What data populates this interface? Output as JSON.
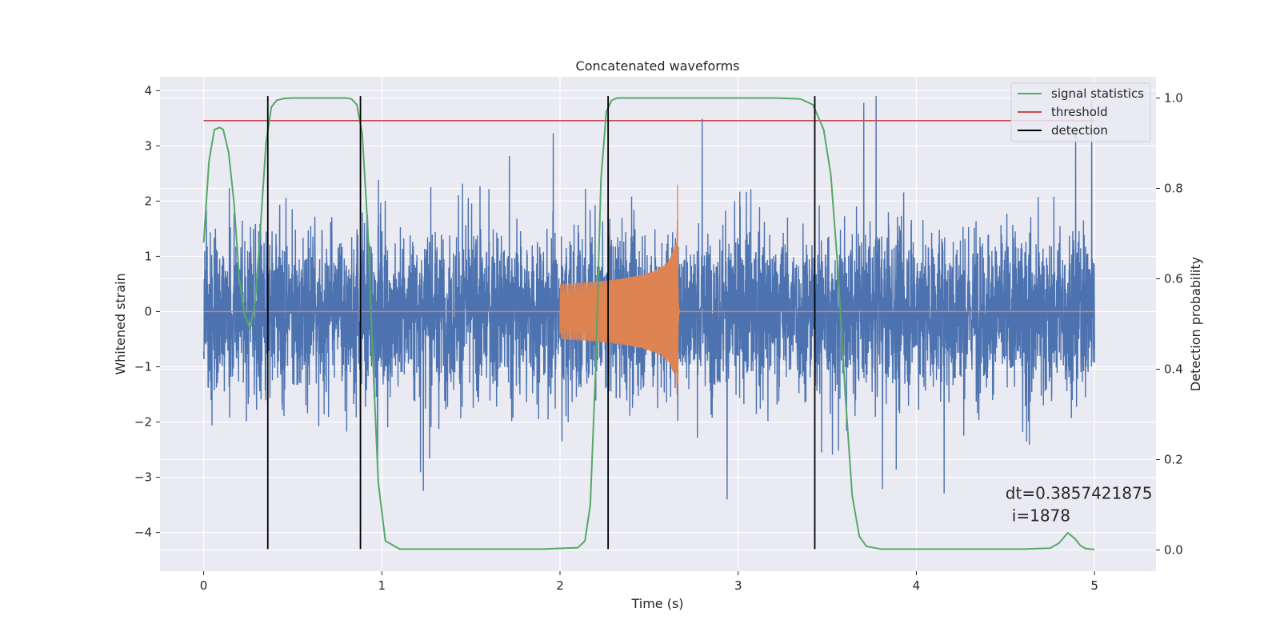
{
  "chart_data": {
    "type": "line",
    "title": "Concatenated waveforms",
    "xlabel": "Time (s)",
    "ylabel_left": "Whitened strain",
    "ylabel_right": "Detection probability",
    "xlim": [
      -0.245,
      5.345
    ],
    "ylim_left": [
      -4.7,
      4.25
    ],
    "ylim_right": [
      -0.047,
      1.047
    ],
    "x_ticks": [
      0,
      1,
      2,
      3,
      4,
      5
    ],
    "x_tick_labels": [
      "0",
      "1",
      "2",
      "3",
      "4",
      "5"
    ],
    "y_left_ticks": [
      -4,
      -3,
      -2,
      -1,
      0,
      1,
      2,
      3,
      4
    ],
    "y_left_tick_labels": [
      "−4",
      "−3",
      "−2",
      "−1",
      "0",
      "1",
      "2",
      "3",
      "4"
    ],
    "y_right_ticks": [
      0.0,
      0.2,
      0.4,
      0.6,
      0.8,
      1.0
    ],
    "y_right_tick_labels": [
      "0.0",
      "0.2",
      "0.4",
      "0.6",
      "0.8",
      "1.0"
    ],
    "grid": true,
    "legend_position": "top-right",
    "legend": [
      {
        "label": "signal statistics",
        "color": "#55a868"
      },
      {
        "label": "threshold",
        "color": "#c44e52"
      },
      {
        "label": "detection",
        "color": "#000000"
      }
    ],
    "series": [
      {
        "name": "whitened-strain",
        "axis": "left",
        "color": "#4c72b0",
        "kind": "noise",
        "x_range": [
          0,
          5
        ],
        "amplitude_typical": 1.5,
        "amplitude_peak": 3.9
      },
      {
        "name": "injected-waveform",
        "axis": "left",
        "color": "#dd8452",
        "kind": "chirp",
        "onset": 2.0,
        "merger": 2.66,
        "start_amplitude": 0.5,
        "peak_amplitude": 2.3,
        "zero_line_x_range": [
          0,
          5
        ]
      },
      {
        "name": "signal statistics",
        "axis": "right",
        "color": "#55a868",
        "x": [
          0.0,
          0.03,
          0.06,
          0.09,
          0.11,
          0.14,
          0.17,
          0.2,
          0.23,
          0.26,
          0.29,
          0.32,
          0.35,
          0.38,
          0.41,
          0.45,
          0.5,
          0.6,
          0.7,
          0.8,
          0.83,
          0.86,
          0.89,
          0.92,
          0.95,
          0.98,
          1.02,
          1.1,
          1.5,
          1.9,
          2.1,
          2.14,
          2.17,
          2.2,
          2.23,
          2.26,
          2.29,
          2.32,
          2.4,
          2.8,
          3.2,
          3.35,
          3.42,
          3.48,
          3.52,
          3.56,
          3.6,
          3.64,
          3.68,
          3.72,
          3.8,
          4.2,
          4.6,
          4.75,
          4.8,
          4.85,
          4.89,
          4.92,
          4.95,
          5.0
        ],
        "y": [
          0.68,
          0.86,
          0.93,
          0.935,
          0.93,
          0.88,
          0.77,
          0.6,
          0.52,
          0.49,
          0.55,
          0.72,
          0.9,
          0.98,
          0.995,
          0.999,
          1.0,
          1.0,
          1.0,
          1.0,
          0.998,
          0.985,
          0.92,
          0.72,
          0.42,
          0.15,
          0.02,
          0.002,
          0.002,
          0.002,
          0.005,
          0.02,
          0.1,
          0.4,
          0.82,
          0.97,
          0.995,
          1.0,
          1.0,
          1.0,
          1.0,
          0.998,
          0.985,
          0.93,
          0.83,
          0.62,
          0.35,
          0.12,
          0.03,
          0.008,
          0.002,
          0.002,
          0.002,
          0.004,
          0.015,
          0.038,
          0.025,
          0.01,
          0.003,
          0.001
        ]
      },
      {
        "name": "threshold",
        "axis": "right",
        "color": "#c44e52",
        "x": [
          0,
          5
        ],
        "y": [
          0.95,
          0.95
        ]
      }
    ],
    "detections": [
      0.36,
      0.88,
      2.27,
      3.43
    ],
    "detection_y_range": [
      -4.3,
      3.9
    ],
    "annotation": {
      "line1": "dt=0.3857421875",
      "line2": "i=1878",
      "x": 4.5,
      "y_right": 0.113
    }
  }
}
